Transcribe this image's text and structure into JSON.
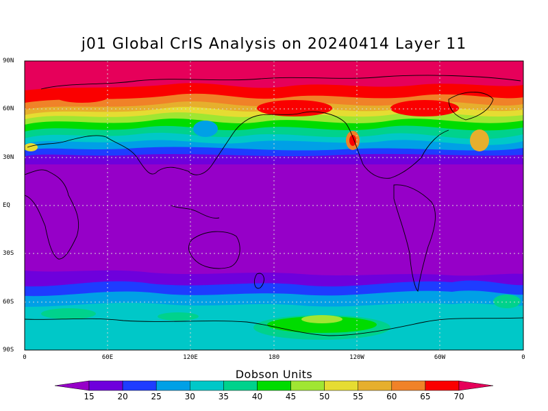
{
  "title": "j01 Global CrIS Analysis on 20240414 Layer 11",
  "lat_labels": [
    "90N",
    "60N",
    "30N",
    "EQ",
    "30S",
    "60S",
    "90S"
  ],
  "lon_labels": [
    "0",
    "60E",
    "120E",
    "180",
    "120W",
    "60W",
    "0"
  ],
  "colorbar": {
    "title": "Dobson Units",
    "levels": [
      "15",
      "20",
      "25",
      "30",
      "35",
      "40",
      "45",
      "50",
      "55",
      "60",
      "65",
      "70"
    ],
    "colors": [
      "#9600c8",
      "#6e00dc",
      "#1e3cff",
      "#00a0e6",
      "#00c8c8",
      "#00d28c",
      "#00dc00",
      "#a0e632",
      "#e6dc32",
      "#e6af2d",
      "#f08228",
      "#fa0000",
      "#e6005a"
    ]
  },
  "colors": {
    "background": "#ffffff",
    "coastline": "#000000",
    "gridline": "#ffffff"
  }
}
